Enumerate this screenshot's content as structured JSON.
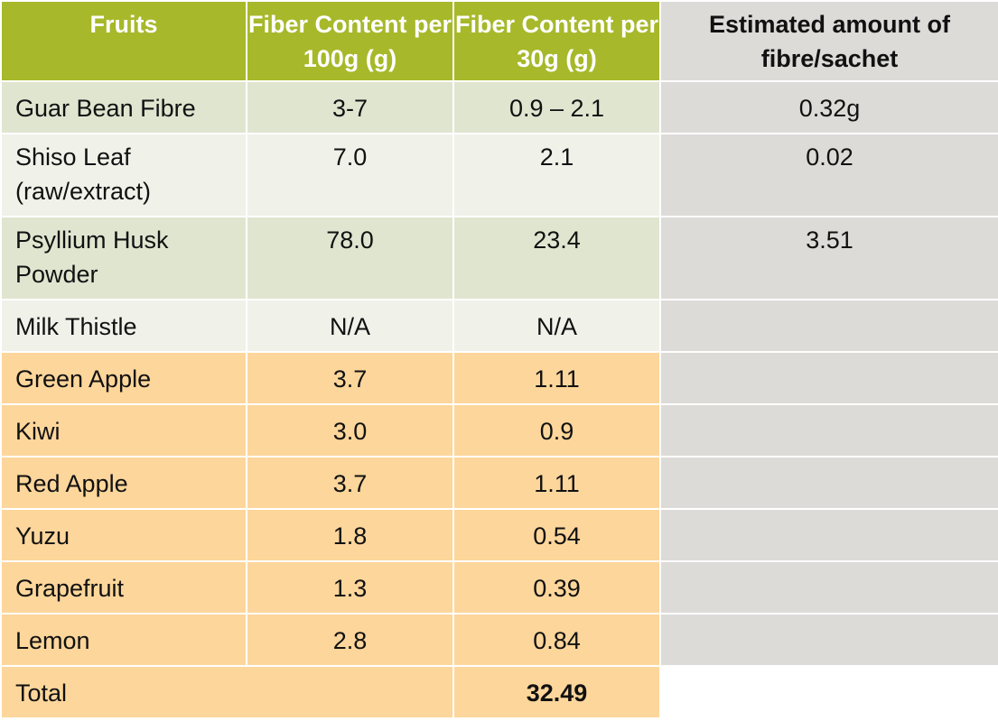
{
  "headers": [
    "Fruits",
    "Fiber Content per 100g (g)",
    "Fiber Content per 30g (g)",
    "Estimated amount of fibre/sachet"
  ],
  "rows": [
    {
      "name": "Guar Bean Fibre",
      "per100": "3-7",
      "per30": "0.9 – 2.1",
      "sachet": "0.32g"
    },
    {
      "name": "Shiso Leaf (raw/extract)",
      "per100": "7.0",
      "per30": "2.1",
      "sachet": "0.02"
    },
    {
      "name": "Psyllium Husk Powder",
      "per100": "78.0",
      "per30": "23.4",
      "sachet": "3.51"
    },
    {
      "name": "Milk Thistle",
      "per100": "N/A",
      "per30": "N/A",
      "sachet": ""
    },
    {
      "name": "Green Apple",
      "per100": "3.7",
      "per30": "1.11",
      "sachet": ""
    },
    {
      "name": "Kiwi",
      "per100": "3.0",
      "per30": "0.9",
      "sachet": ""
    },
    {
      "name": "Red Apple",
      "per100": "3.7",
      "per30": "1.11",
      "sachet": ""
    },
    {
      "name": "Yuzu",
      "per100": "1.8",
      "per30": "0.54",
      "sachet": ""
    },
    {
      "name": "Grapefruit",
      "per100": "1.3",
      "per30": "0.39",
      "sachet": ""
    },
    {
      "name": "Lemon",
      "per100": "2.8",
      "per30": "0.84",
      "sachet": ""
    }
  ],
  "total": {
    "label": "Total",
    "value": "32.49"
  },
  "colors": {
    "header_green": "#a7b82a",
    "header_grey": "#dcdbd8",
    "row_dark_green": "#e0e5d0",
    "row_light_green": "#f0f2ea",
    "row_orange": "#fdd69b",
    "column_grey": "#dcdbd8"
  }
}
